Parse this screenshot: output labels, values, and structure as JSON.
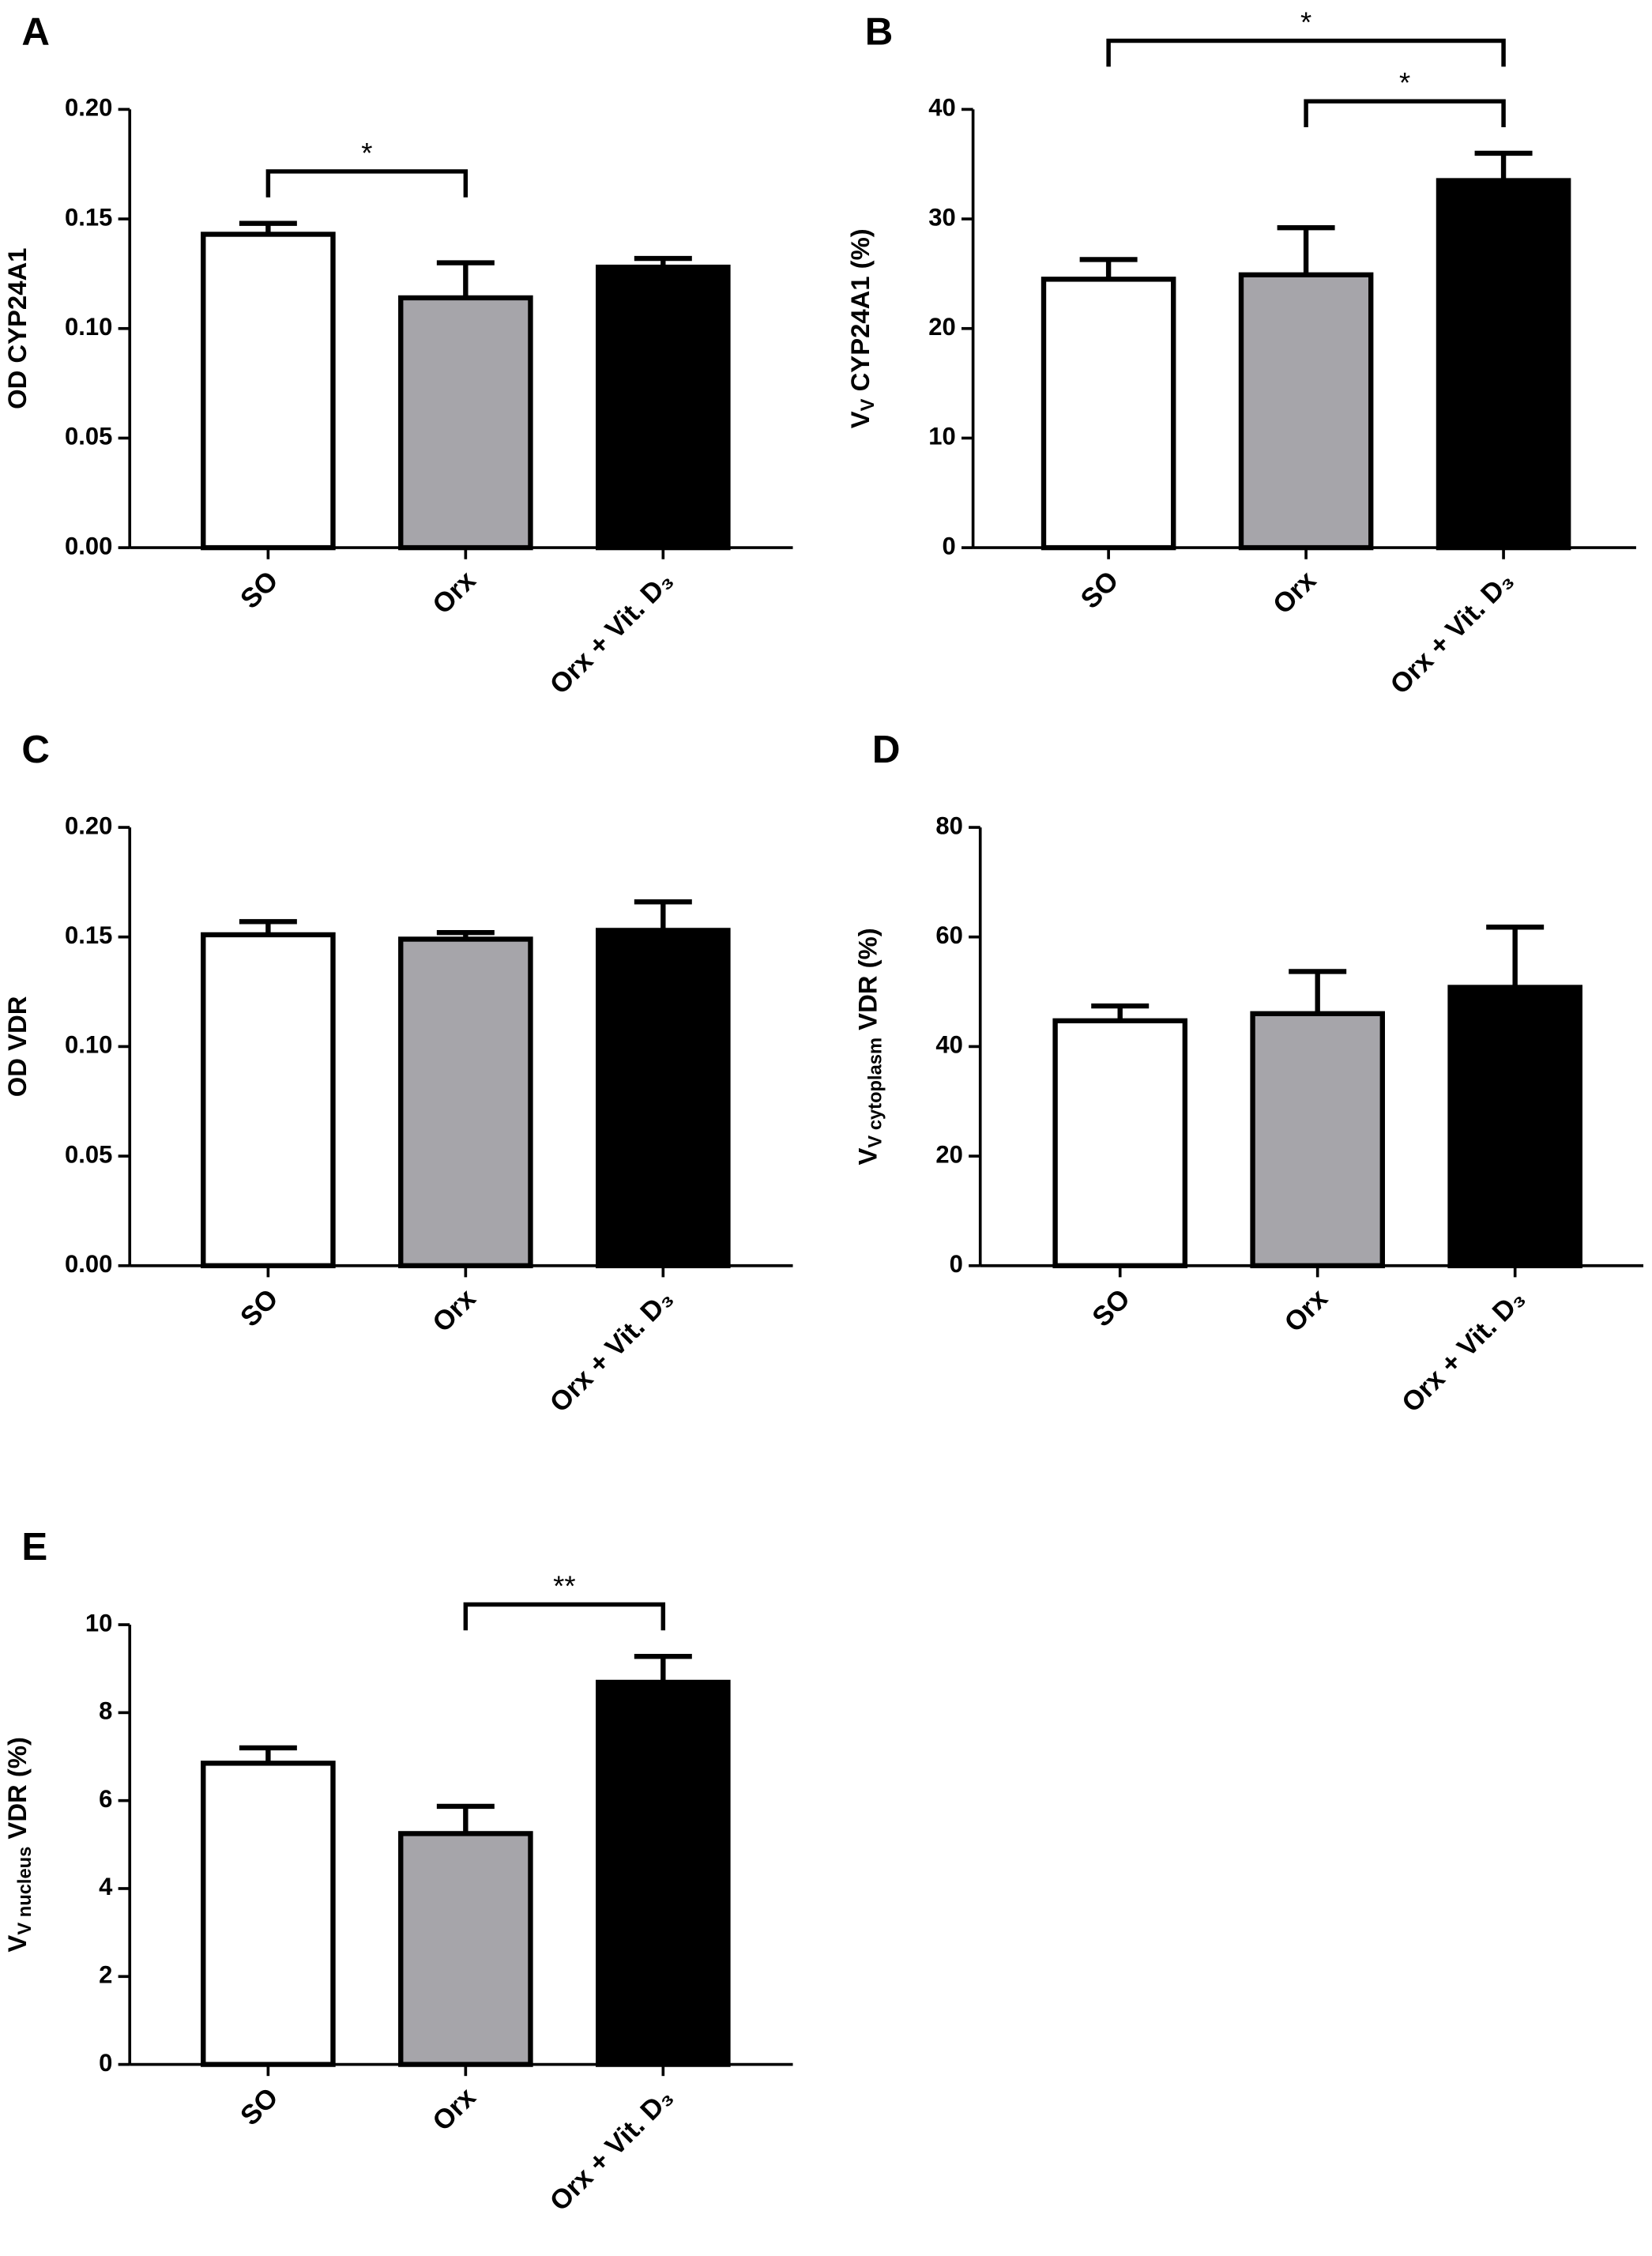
{
  "chart_data": [
    {
      "type": "bar",
      "panel": "A",
      "ylabel": [
        {
          "text": "OD CYP24A1"
        }
      ],
      "categories": [
        "SO",
        "Orx",
        "Orx + Vit. D₃"
      ],
      "values": [
        0.143,
        0.114,
        0.128
      ],
      "errors": [
        0.005,
        0.016,
        0.004
      ],
      "colors": [
        "#ffffff",
        "#a6a5aa",
        "#000000"
      ],
      "ylim": [
        0,
        0.2
      ],
      "yticks": [
        {
          "value": 0,
          "label": "0.00"
        },
        {
          "value": 0.05,
          "label": "0.05"
        },
        {
          "value": 0.1,
          "label": "0.10"
        },
        {
          "value": 0.15,
          "label": "0.15"
        },
        {
          "value": 0.2,
          "label": "0.20"
        }
      ],
      "annotations": [
        {
          "from": 0,
          "to": 1,
          "label": "*"
        }
      ]
    },
    {
      "type": "bar",
      "panel": "B",
      "ylabel": [
        {
          "text": "V"
        },
        {
          "text": "V",
          "sub": true
        },
        {
          "text": " CYP24A1 (%)"
        }
      ],
      "categories": [
        "SO",
        "Orx",
        "Orx + Vit. D₃"
      ],
      "values": [
        24.5,
        24.9,
        33.5
      ],
      "errors": [
        1.8,
        4.3,
        2.5
      ],
      "colors": [
        "#ffffff",
        "#a6a5aa",
        "#000000"
      ],
      "ylim": [
        0,
        40
      ],
      "yticks": [
        0,
        10,
        20,
        30,
        40
      ],
      "annotations": [
        {
          "from": 1,
          "to": 2,
          "label": "*"
        },
        {
          "from": 0,
          "to": 2,
          "label": "*"
        }
      ]
    },
    {
      "type": "bar",
      "panel": "C",
      "ylabel": [
        {
          "text": "OD VDR"
        }
      ],
      "categories": [
        "SO",
        "Orx",
        "Orx + Vit. D₃"
      ],
      "values": [
        0.151,
        0.149,
        0.153
      ],
      "errors": [
        0.006,
        0.003,
        0.013
      ],
      "colors": [
        "#ffffff",
        "#a6a5aa",
        "#000000"
      ],
      "ylim": [
        0,
        0.2
      ],
      "yticks": [
        {
          "value": 0,
          "label": "0.00"
        },
        {
          "value": 0.05,
          "label": "0.05"
        },
        {
          "value": 0.1,
          "label": "0.10"
        },
        {
          "value": 0.15,
          "label": "0.15"
        },
        {
          "value": 0.2,
          "label": "0.20"
        }
      ],
      "annotations": []
    },
    {
      "type": "bar",
      "panel": "D",
      "ylabel": [
        {
          "text": "V"
        },
        {
          "text": "V cytoplasm",
          "sub": true
        },
        {
          "text": " VDR (%)"
        }
      ],
      "categories": [
        "SO",
        "Orx",
        "Orx + Vit. D₃"
      ],
      "values": [
        44.7,
        46,
        50.8
      ],
      "errors": [
        2.7,
        7.7,
        11
      ],
      "colors": [
        "#ffffff",
        "#a6a5aa",
        "#000000"
      ],
      "ylim": [
        0,
        80
      ],
      "yticks": [
        0,
        20,
        40,
        60,
        80
      ],
      "annotations": []
    },
    {
      "type": "bar",
      "panel": "E",
      "ylabel": [
        {
          "text": "V"
        },
        {
          "text": "V nucleus",
          "sub": true
        },
        {
          "text": " VDR (%)"
        }
      ],
      "categories": [
        "SO",
        "Orx",
        "Orx + Vit. D₃"
      ],
      "values": [
        6.85,
        5.25,
        8.69
      ],
      "errors": [
        0.35,
        0.62,
        0.59
      ],
      "colors": [
        "#ffffff",
        "#a6a5aa",
        "#000000"
      ],
      "ylim": [
        0,
        10
      ],
      "yticks": [
        0,
        2,
        4,
        6,
        8,
        10
      ],
      "annotations": [
        {
          "from": 1,
          "to": 2,
          "label": "**"
        }
      ]
    }
  ]
}
